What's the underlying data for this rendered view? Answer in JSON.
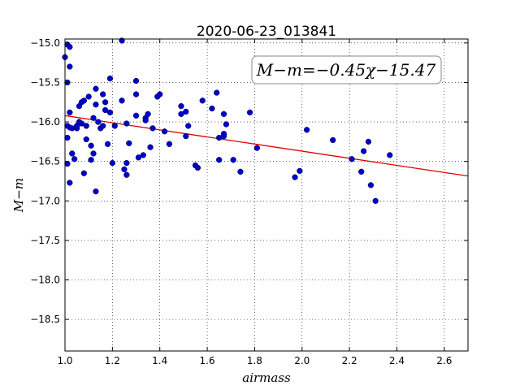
{
  "chart_data": {
    "type": "scatter",
    "title": "2020-06-23_013841",
    "xlabel": "airmass",
    "ylabel": "M−m",
    "xlim": [
      1.0,
      2.7
    ],
    "ylim": [
      -18.9,
      -14.95
    ],
    "x_ticks": [
      1.0,
      1.2,
      1.4,
      1.6,
      1.8,
      2.0,
      2.2,
      2.4,
      2.6
    ],
    "x_tick_labels": [
      "1.0",
      "1.2",
      "1.4",
      "1.6",
      "1.8",
      "2.0",
      "2.2",
      "2.4",
      "2.6"
    ],
    "y_ticks": [
      -15.0,
      -15.5,
      -16.0,
      -16.5,
      -17.0,
      -17.5,
      -18.0,
      -18.5
    ],
    "y_tick_labels": [
      "−15.0",
      "−15.5",
      "−16.0",
      "−16.5",
      "−17.0",
      "−17.5",
      "−18.0",
      "−18.5"
    ],
    "grid": true,
    "annotation": "M−m=−0.45χ−15.47",
    "annotation_placement": "top-right",
    "point_color": "#0000cc",
    "fit_color": "#dd0000",
    "fit": {
      "slope": -0.45,
      "intercept": -15.47,
      "x_range": [
        1.0,
        2.7
      ]
    },
    "points": [
      [
        1.0,
        -15.18
      ],
      [
        1.01,
        -15.02
      ],
      [
        1.02,
        -15.05
      ],
      [
        1.02,
        -15.3
      ],
      [
        1.01,
        -15.5
      ],
      [
        1.02,
        -15.88
      ],
      [
        1.01,
        -16.05
      ],
      [
        1.02,
        -16.07
      ],
      [
        1.03,
        -16.08
      ],
      [
        1.01,
        -16.2
      ],
      [
        1.03,
        -16.4
      ],
      [
        1.04,
        -16.47
      ],
      [
        1.01,
        -16.53
      ],
      [
        1.02,
        -16.77
      ],
      [
        1.05,
        -16.08
      ],
      [
        1.05,
        -16.05
      ],
      [
        1.06,
        -15.8
      ],
      [
        1.07,
        -15.75
      ],
      [
        1.07,
        -16.02
      ],
      [
        1.08,
        -15.73
      ],
      [
        1.06,
        -16.0
      ],
      [
        1.09,
        -16.05
      ],
      [
        1.09,
        -16.22
      ],
      [
        1.08,
        -16.65
      ],
      [
        1.1,
        -15.68
      ],
      [
        1.11,
        -16.3
      ],
      [
        1.11,
        -16.48
      ],
      [
        1.12,
        -16.4
      ],
      [
        1.12,
        -15.95
      ],
      [
        1.13,
        -15.58
      ],
      [
        1.13,
        -15.78
      ],
      [
        1.14,
        -16.0
      ],
      [
        1.15,
        -16.08
      ],
      [
        1.16,
        -15.65
      ],
      [
        1.16,
        -16.05
      ],
      [
        1.17,
        -15.85
      ],
      [
        1.17,
        -15.75
      ],
      [
        1.18,
        -16.28
      ],
      [
        1.19,
        -15.45
      ],
      [
        1.19,
        -15.88
      ],
      [
        1.2,
        -16.52
      ],
      [
        1.13,
        -16.88
      ],
      [
        1.21,
        -16.05
      ],
      [
        1.24,
        -14.97
      ],
      [
        1.24,
        -15.73
      ],
      [
        1.25,
        -16.6
      ],
      [
        1.26,
        -16.02
      ],
      [
        1.26,
        -16.52
      ],
      [
        1.26,
        -16.67
      ],
      [
        1.27,
        -16.27
      ],
      [
        1.3,
        -15.48
      ],
      [
        1.3,
        -15.65
      ],
      [
        1.3,
        -15.92
      ],
      [
        1.31,
        -16.45
      ],
      [
        1.33,
        -16.42
      ],
      [
        1.34,
        -15.95
      ],
      [
        1.34,
        -15.98
      ],
      [
        1.35,
        -15.9
      ],
      [
        1.36,
        -16.32
      ],
      [
        1.37,
        -16.08
      ],
      [
        1.39,
        -15.68
      ],
      [
        1.4,
        -15.65
      ],
      [
        1.42,
        -16.12
      ],
      [
        1.44,
        -16.28
      ],
      [
        1.49,
        -15.8
      ],
      [
        1.49,
        -15.9
      ],
      [
        1.51,
        -15.87
      ],
      [
        1.51,
        -16.18
      ],
      [
        1.52,
        -16.05
      ],
      [
        1.55,
        -16.55
      ],
      [
        1.56,
        -16.58
      ],
      [
        1.58,
        -15.73
      ],
      [
        1.62,
        -15.83
      ],
      [
        1.64,
        -15.63
      ],
      [
        1.65,
        -16.2
      ],
      [
        1.65,
        -16.48
      ],
      [
        1.67,
        -15.9
      ],
      [
        1.67,
        -16.18
      ],
      [
        1.67,
        -16.15
      ],
      [
        1.68,
        -16.03
      ],
      [
        1.71,
        -16.48
      ],
      [
        1.74,
        -16.63
      ],
      [
        1.78,
        -15.88
      ],
      [
        1.81,
        -16.33
      ],
      [
        1.97,
        -16.7
      ],
      [
        1.99,
        -16.62
      ],
      [
        2.02,
        -16.1
      ],
      [
        2.13,
        -16.23
      ],
      [
        2.21,
        -16.47
      ],
      [
        2.25,
        -16.63
      ],
      [
        2.26,
        -16.37
      ],
      [
        2.28,
        -16.25
      ],
      [
        2.29,
        -16.8
      ],
      [
        2.31,
        -17.0
      ],
      [
        2.37,
        -16.42
      ]
    ]
  }
}
